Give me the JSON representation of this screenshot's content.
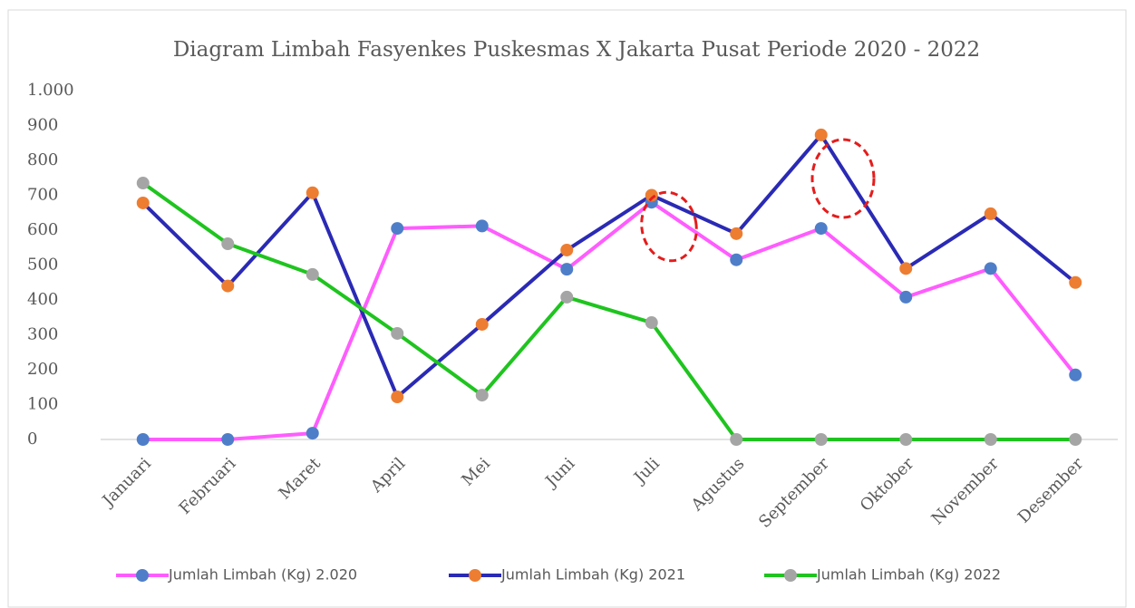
{
  "chart_data": {
    "type": "line",
    "title": "Diagram Limbah Fasyenkes Puskesmas X  Jakarta Pusat Periode 2020 - 2022",
    "categories": [
      "Januari",
      "Februari",
      "Maret",
      "April",
      "Mei",
      "Juni",
      "Juli",
      "Agustus",
      "September",
      "Oktober",
      "November",
      "Desember"
    ],
    "series": [
      {
        "name": "Jumlah Limbah (Kg) 2.020",
        "color": "#ff5cff",
        "marker_color": "#4f7ec9",
        "values": [
          0,
          0,
          18,
          605,
          612,
          488,
          680,
          515,
          605,
          408,
          490,
          185
        ]
      },
      {
        "name": "Jumlah Limbah (Kg) 2021",
        "color": "#2a2ab5",
        "marker_color": "#ed7d31",
        "values": [
          678,
          440,
          707,
          122,
          330,
          543,
          700,
          590,
          873,
          490,
          647,
          450
        ]
      },
      {
        "name": "Jumlah Limbah (Kg) 2022",
        "color": "#1fc41f",
        "marker_color": "#a5a5a5",
        "values": [
          735,
          561,
          473,
          304,
          127,
          408,
          335,
          0,
          0,
          0,
          0,
          0
        ]
      }
    ],
    "ylim": [
      0,
      1000
    ],
    "yticks": [
      0,
      100,
      200,
      300,
      400,
      500,
      600,
      700,
      800,
      900,
      {
        "value": 1000,
        "label": "1.000"
      }
    ],
    "grid": false
  }
}
